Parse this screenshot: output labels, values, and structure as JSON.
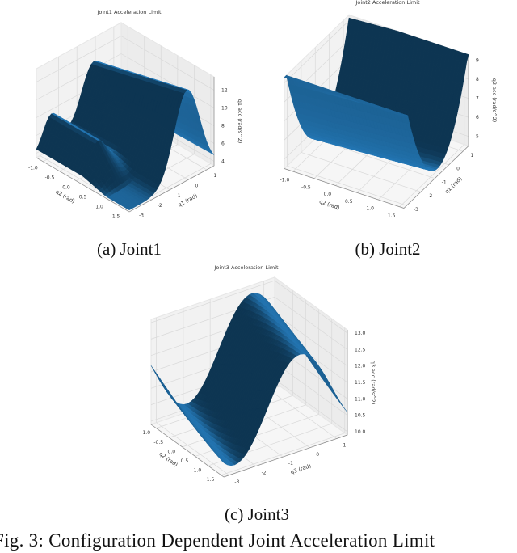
{
  "figure": {
    "caption": "Fig. 3: Configuration Dependent Joint Acceleration Limit",
    "subcaptions": [
      "(a) Joint1",
      "(b) Joint2",
      "(c) Joint3"
    ]
  },
  "colors": {
    "surface_light": "#2479b8",
    "surface_dark": "#0d3552",
    "pane": "#f2f2f2",
    "grid": "#d9d9d9"
  },
  "chart_data": [
    {
      "type": "surface3d",
      "title": "Joint1 Acceleration Limit",
      "xlabel": "q2 (rad)",
      "ylabel": "q1 (rad)",
      "zlabel": "q1 acc (rad/s^2)",
      "xticks": [
        "-1.0",
        "-0.5",
        "0.0",
        "0.5",
        "1.0",
        "1.5"
      ],
      "yticks": [
        "-3",
        "-2",
        "-1",
        "0",
        "1"
      ],
      "zticks": [
        "4",
        "6",
        "8",
        "10",
        "12"
      ],
      "xlim": [
        -1.2,
        1.6
      ],
      "ylim": [
        -3.2,
        1.4
      ],
      "zlim": [
        3.5,
        13.5
      ],
      "grid": true
    },
    {
      "type": "surface3d",
      "title": "Joint2 Acceleration Limit",
      "xlabel": "q2 (rad)",
      "ylabel": "q1 (rad)",
      "zlabel": "q2 acc (rad/s^2)",
      "xticks": [
        "-1.0",
        "-0.5",
        "0.0",
        "0.5",
        "1.0",
        "1.5"
      ],
      "yticks": [
        "-3",
        "-2",
        "-1",
        "0",
        "1"
      ],
      "zticks": [
        "5",
        "6",
        "7",
        "8",
        "9"
      ],
      "xlim": [
        -1.2,
        1.6
      ],
      "ylim": [
        -3.2,
        1.4
      ],
      "zlim": [
        4.5,
        9.3
      ],
      "grid": true
    },
    {
      "type": "surface3d",
      "title": "Joint3 Acceleration Limit",
      "xlabel": "q2 (rad)",
      "ylabel": "q3 (rad)",
      "zlabel": "q3 acc (rad/s^2)",
      "xticks": [
        "-1.0",
        "-0.5",
        "0.0",
        "0.5",
        "1.0",
        "1.5"
      ],
      "yticks": [
        "-3",
        "-2",
        "-1",
        "0",
        "1"
      ],
      "zticks": [
        "10.0",
        "10.5",
        "11.0",
        "11.5",
        "12.0",
        "12.5",
        "13.0"
      ],
      "xlim": [
        -1.2,
        1.6
      ],
      "ylim": [
        -3.2,
        1.4
      ],
      "zlim": [
        9.9,
        13.1
      ],
      "grid": true
    }
  ]
}
